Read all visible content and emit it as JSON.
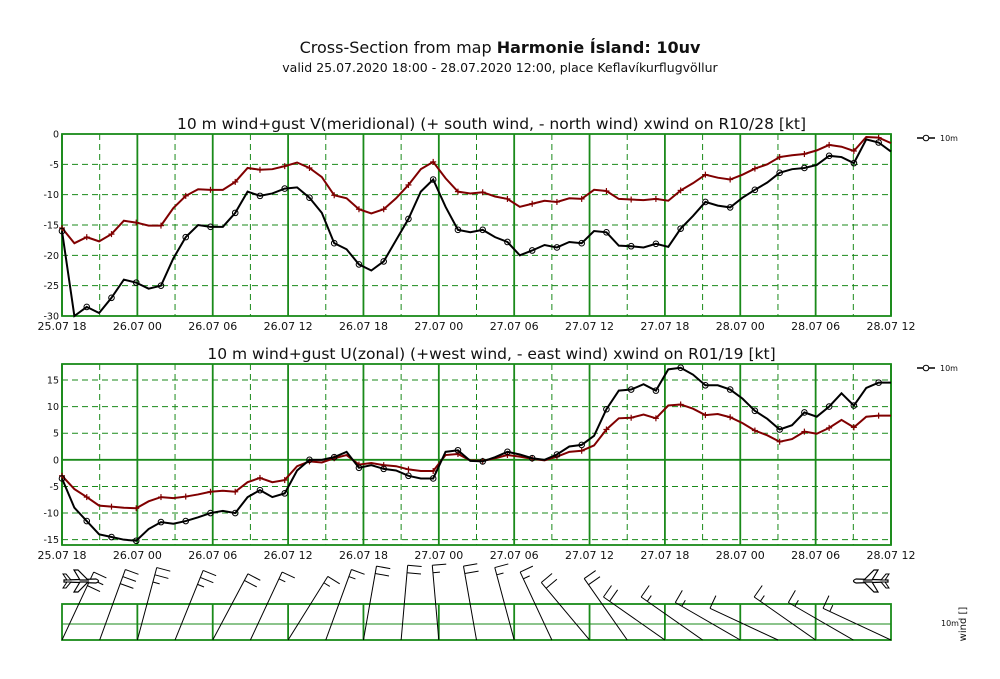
{
  "header": {
    "title_prefix": "Cross-Section from map ",
    "title_bold": "Harmonie Ísland: 10uv",
    "subtitle": "valid 25.07.2020 18:00 - 28.07.2020 12:00, place Keflavíkurflugvöllur"
  },
  "x_tick_labels": [
    "25.07 18",
    "26.07 00",
    "26.07 06",
    "26.07 12",
    "26.07 18",
    "27.07 00",
    "27.07 06",
    "27.07 12",
    "27.07 18",
    "28.07 00",
    "28.07 06",
    "28.07 12"
  ],
  "colors": {
    "grid": "#1a8a1a",
    "wind": "#000000",
    "gust": "#800000",
    "barb": "#000000"
  },
  "icons": [
    "airplane-icon"
  ],
  "chart_data": [
    {
      "type": "line",
      "title": "10 m wind+gust V(meridional) (+ south wind, - north wind) xwind on R10/28 [kt]",
      "xlabel": "",
      "ylabel": "",
      "x_range_hours": [
        0,
        66
      ],
      "ylim": [
        -30,
        0
      ],
      "y_ticks": [
        0,
        -5,
        -10,
        -15,
        -20,
        -25,
        -30
      ],
      "legend": {
        "placement": "right",
        "entries": [
          "10m"
        ]
      },
      "series": [
        {
          "name": "10m",
          "marker": "circle",
          "values": [
            -16,
            -30,
            -28.5,
            -29.5,
            -27,
            -24,
            -24.5,
            -25.5,
            -25,
            -20.5,
            -17,
            -15,
            -15.3,
            -15.3,
            -13,
            -9.5,
            -10.2,
            -9.8,
            -9,
            -8.8,
            -10.5,
            -13,
            -18,
            -19,
            -21.5,
            -22.5,
            -21,
            -17.5,
            -14,
            -9.5,
            -7.5,
            -12,
            -15.8,
            -16.2,
            -15.8,
            -17,
            -17.8,
            -20,
            -19.2,
            -18.3,
            -18.7,
            -17.8,
            -18,
            -16,
            -16.2,
            -18.4,
            -18.5,
            -18.7,
            -18.1,
            -18.6,
            -15.6,
            -13.5,
            -11.2,
            -11.8,
            -12.1,
            -10.5,
            -9.2,
            -8,
            -6.4,
            -5.8,
            -5.6,
            -5.1,
            -3.6,
            -3.8,
            -4.8,
            -0.9,
            -1.4,
            -2.9
          ]
        },
        {
          "name": "gust",
          "marker": "plus",
          "values": [
            -15.5,
            -18,
            -17,
            -17.7,
            -16.5,
            -14.3,
            -14.6,
            -15.1,
            -15.1,
            -12.2,
            -10.2,
            -9.1,
            -9.2,
            -9.2,
            -7.9,
            -5.6,
            -5.9,
            -5.8,
            -5.3,
            -4.7,
            -5.6,
            -7.1,
            -10.1,
            -10.6,
            -12.4,
            -13.1,
            -12.4,
            -10.6,
            -8.4,
            -5.8,
            -4.6,
            -7.3,
            -9.5,
            -9.8,
            -9.6,
            -10.3,
            -10.7,
            -12,
            -11.5,
            -11,
            -11.2,
            -10.6,
            -10.7,
            -9.2,
            -9.4,
            -10.7,
            -10.8,
            -10.9,
            -10.7,
            -11,
            -9.3,
            -8.1,
            -6.7,
            -7.2,
            -7.5,
            -6.7,
            -5.7,
            -5,
            -3.8,
            -3.5,
            -3.3,
            -2.7,
            -1.8,
            -2.1,
            -2.8,
            -0.5,
            -0.6,
            -1.5
          ]
        }
      ]
    },
    {
      "type": "line",
      "title": "10 m wind+gust U(zonal) (+west wind, - east wind) xwind on R01/19 [kt]",
      "xlabel": "",
      "ylabel": "",
      "x_range_hours": [
        0,
        66
      ],
      "ylim": [
        -16,
        18
      ],
      "y_ticks": [
        15,
        10,
        5,
        0,
        -5,
        -10,
        -15
      ],
      "legend": {
        "placement": "right",
        "entries": [
          "10m"
        ]
      },
      "series": [
        {
          "name": "10m",
          "marker": "circle",
          "values": [
            -3.5,
            -9,
            -11.5,
            -14,
            -14.5,
            -15,
            -15.2,
            -13,
            -11.7,
            -12,
            -11.5,
            -10.8,
            -10,
            -9.6,
            -10,
            -7,
            -5.7,
            -7,
            -6.3,
            -2,
            0,
            0,
            0.5,
            1.5,
            -1.5,
            -1,
            -1.7,
            -2,
            -3,
            -3.5,
            -3.5,
            1.5,
            1.8,
            -0.2,
            -0.3,
            0.5,
            1.5,
            1,
            0.3,
            0,
            1,
            2.5,
            2.8,
            4.5,
            9.5,
            13,
            13.2,
            14.2,
            13,
            17,
            17.3,
            16,
            14,
            14,
            13.2,
            11.5,
            9.2,
            7.7,
            5.7,
            6.5,
            8.9,
            8.1,
            10,
            12.5,
            10.2,
            13.5,
            14.5,
            14.5
          ]
        },
        {
          "name": "gust",
          "marker": "plus",
          "values": [
            -3,
            -5.5,
            -7,
            -8.6,
            -8.8,
            -9,
            -9.1,
            -7.8,
            -7,
            -7.2,
            -6.9,
            -6.5,
            -6,
            -5.8,
            -6,
            -4.2,
            -3.4,
            -4.2,
            -3.8,
            -1.2,
            -0.3,
            -0.5,
            0.3,
            0.9,
            -0.9,
            -0.6,
            -1,
            -1.2,
            -1.8,
            -2.1,
            -2.1,
            0.9,
            1.1,
            -0.1,
            -0.2,
            0.3,
            0.9,
            0.6,
            0.2,
            -0.1,
            0.6,
            1.5,
            1.7,
            2.7,
            5.7,
            7.8,
            7.9,
            8.5,
            7.8,
            10.2,
            10.4,
            9.6,
            8.4,
            8.6,
            8,
            6.9,
            5.5,
            4.6,
            3.4,
            3.9,
            5.3,
            4.9,
            6,
            7.5,
            6.1,
            8.1,
            8.3,
            8.3
          ]
        }
      ]
    },
    {
      "type": "other",
      "title": "",
      "xlabel": "",
      "ylabel": "wind []",
      "row_label": "10m",
      "x_range_hours": [
        0,
        66
      ],
      "barbs": {
        "hours": [
          0,
          3,
          6,
          9,
          12,
          15,
          18,
          21,
          24,
          27,
          30,
          33,
          36,
          39,
          42,
          45,
          48,
          51,
          54,
          57,
          60,
          63,
          66
        ],
        "direction_deg": [
          25,
          20,
          15,
          22,
          28,
          25,
          32,
          20,
          10,
          5,
          355,
          350,
          345,
          335,
          320,
          325,
          305,
          305,
          300,
          295,
          305,
          300,
          295
        ],
        "speed_kt": [
          30,
          32,
          28,
          25,
          20,
          17,
          15,
          18,
          20,
          21,
          18,
          20,
          16,
          18,
          22,
          24,
          20,
          16,
          15,
          14,
          15,
          16,
          18
        ]
      }
    }
  ]
}
